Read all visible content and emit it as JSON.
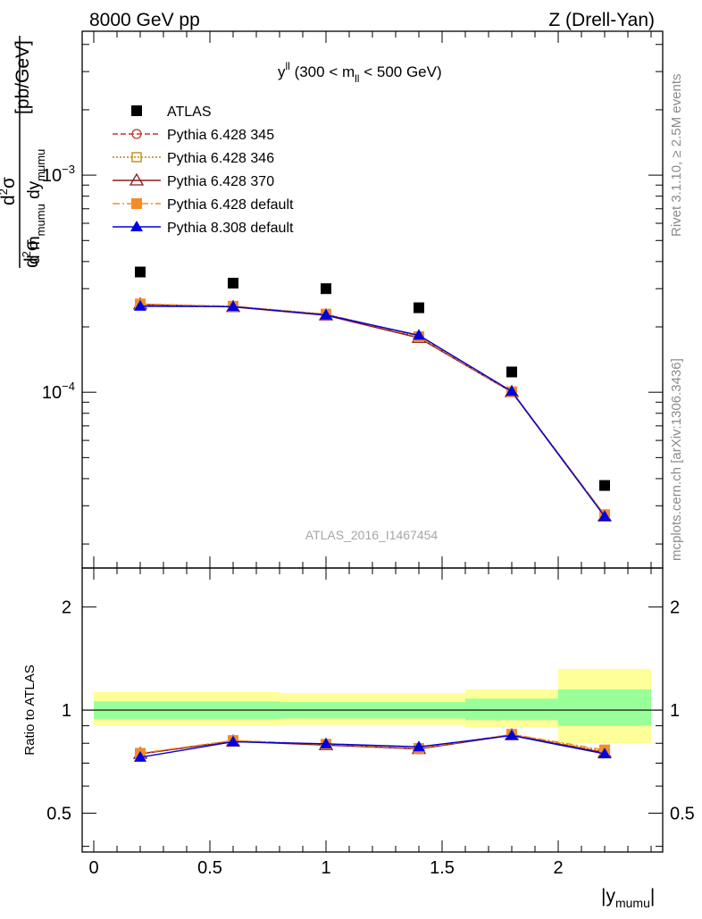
{
  "header": {
    "left": "8000 GeV pp",
    "right": "Z (Drell-Yan)"
  },
  "plot_title": {
    "main": "y",
    "sup": "ll",
    "rest": " (300 < m",
    "sub": "ll",
    "tail": " < 500 GeV)"
  },
  "side_text": {
    "rivet": "Rivet 3.1.10, ≥ 2.5M events",
    "mcplots": "mcplots.cern.ch [arXiv:1306.3436]"
  },
  "watermark": "ATLAS_2016_I1467454",
  "ylabel_top": {
    "unit": "[pb/GeV]"
  },
  "ylabel_bottom": "Ratio to ATLAS",
  "xlabel": {
    "main": "|y",
    "sub": "mumu",
    "tail": "|"
  },
  "top_ticks": [
    {
      "label_base": "10",
      "label_exp": "−3",
      "value": 0.001
    },
    {
      "label_base": "10",
      "label_exp": "−4",
      "value": 0.0001
    }
  ],
  "ratio_ticks": [
    "0.5",
    "1",
    "2"
  ],
  "x_ticks": [
    "0",
    "0.5",
    "1",
    "1.5",
    "2"
  ],
  "colors": {
    "atlas": "#000000",
    "py345": "#c0392b",
    "py346": "#b8860b",
    "py370": "#8b1a1a",
    "pydef": "#f28c28",
    "py8": "#0000dd",
    "band_inner": "#99ff99",
    "band_outer": "#ffff99"
  },
  "chart_data": [
    {
      "type": "scatter",
      "x_bins": [
        [
          0.0,
          0.4
        ],
        [
          0.4,
          0.8
        ],
        [
          0.8,
          1.2
        ],
        [
          1.2,
          1.6
        ],
        [
          1.6,
          2.0
        ],
        [
          2.0,
          2.4
        ]
      ],
      "x": [
        0.2,
        0.6,
        1.0,
        1.4,
        1.8,
        2.2
      ],
      "xlim": [
        -0.05,
        2.45
      ],
      "ylim": [
        1.55e-05,
        0.0046
      ],
      "yscale": "log",
      "series": [
        {
          "name": "ATLAS",
          "values": [
            0.000358,
            0.000318,
            0.0003,
            0.000245,
            0.000124,
            3.72e-05
          ],
          "marker": "square",
          "line": "none",
          "color": "#000000"
        },
        {
          "name": "Pythia 6.428 345",
          "values": [
            0.000252,
            0.000248,
            0.000228,
            0.00018,
            0.0001004,
            2.71e-05
          ],
          "marker": "circle-open",
          "line": "dashed",
          "color": "#c0392b"
        },
        {
          "name": "Pythia 6.428 346",
          "values": [
            0.000253,
            0.000249,
            0.000229,
            0.000181,
            0.0001006,
            2.72e-05
          ],
          "marker": "square-open",
          "line": "dotted",
          "color": "#b8860b"
        },
        {
          "name": "Pythia 6.428 370",
          "values": [
            0.000254,
            0.000247,
            0.000226,
            0.000178,
            0.0001002,
            2.68e-05
          ],
          "marker": "triangle-open",
          "line": "solid",
          "color": "#8b1a1a"
        },
        {
          "name": "Pythia 6.428 default",
          "values": [
            0.000255,
            0.000249,
            0.000229,
            0.00018,
            0.0001005,
            2.73e-05
          ],
          "marker": "square",
          "line": "dashdot",
          "color": "#f28c28"
        },
        {
          "name": "Pythia 8.308 default",
          "values": [
            0.000249,
            0.000248,
            0.000227,
            0.000183,
            0.000101,
            2.68e-05
          ],
          "marker": "triangle",
          "line": "solid",
          "color": "#0000dd"
        }
      ]
    },
    {
      "type": "scatter",
      "ylabel": "Ratio to ATLAS",
      "x": [
        0.2,
        0.6,
        1.0,
        1.4,
        1.8,
        2.2
      ],
      "xlim": [
        -0.05,
        2.45
      ],
      "ylim": [
        0.385,
        2.6
      ],
      "yscale": "log",
      "bands": [
        {
          "x0": 0.0,
          "x1": 0.4,
          "inner": [
            0.94,
            1.06
          ],
          "outer": [
            0.9,
            1.13
          ]
        },
        {
          "x0": 0.4,
          "x1": 0.8,
          "inner": [
            0.94,
            1.06
          ],
          "outer": [
            0.9,
            1.13
          ]
        },
        {
          "x0": 0.8,
          "x1": 1.2,
          "inner": [
            0.945,
            1.055
          ],
          "outer": [
            0.905,
            1.12
          ]
        },
        {
          "x0": 1.2,
          "x1": 1.6,
          "inner": [
            0.945,
            1.055
          ],
          "outer": [
            0.905,
            1.12
          ]
        },
        {
          "x0": 1.6,
          "x1": 2.0,
          "inner": [
            0.935,
            1.08
          ],
          "outer": [
            0.89,
            1.15
          ]
        },
        {
          "x0": 2.0,
          "x1": 2.4,
          "inner": [
            0.9,
            1.15
          ],
          "outer": [
            0.8,
            1.32
          ]
        }
      ],
      "series": [
        {
          "name": "Pythia 6.428 345",
          "values": [
            0.745,
            0.812,
            0.792,
            0.77,
            0.848,
            0.752
          ]
        },
        {
          "name": "Pythia 6.428 346",
          "values": [
            0.746,
            0.814,
            0.793,
            0.772,
            0.849,
            0.758
          ]
        },
        {
          "name": "Pythia 6.428 370",
          "values": [
            0.745,
            0.81,
            0.79,
            0.77,
            0.845,
            0.75
          ]
        },
        {
          "name": "Pythia 6.428 default",
          "values": [
            0.748,
            0.815,
            0.795,
            0.773,
            0.85,
            0.765
          ]
        },
        {
          "name": "Pythia 8.308 default",
          "values": [
            0.728,
            0.808,
            0.797,
            0.781,
            0.843,
            0.745
          ]
        }
      ]
    }
  ]
}
